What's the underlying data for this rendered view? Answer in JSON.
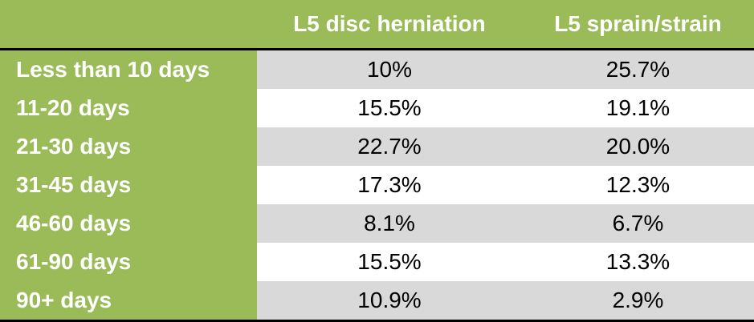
{
  "table": {
    "columns": [
      "L5 disc herniation",
      "L5 sprain/strain"
    ],
    "rows": [
      {
        "label": "Less than 10 days",
        "values": [
          "10%",
          "25.7%"
        ]
      },
      {
        "label": "11-20 days",
        "values": [
          "15.5%",
          "19.1%"
        ]
      },
      {
        "label": "21-30 days",
        "values": [
          "22.7%",
          "20.0%"
        ]
      },
      {
        "label": "31-45 days",
        "values": [
          "17.3%",
          "12.3%"
        ]
      },
      {
        "label": "46-60 days",
        "values": [
          "8.1%",
          "6.7%"
        ]
      },
      {
        "label": "61-90 days",
        "values": [
          "15.5%",
          "13.3%"
        ]
      },
      {
        "label": "90+ days",
        "values": [
          "10.9%",
          "2.9%"
        ]
      }
    ]
  }
}
